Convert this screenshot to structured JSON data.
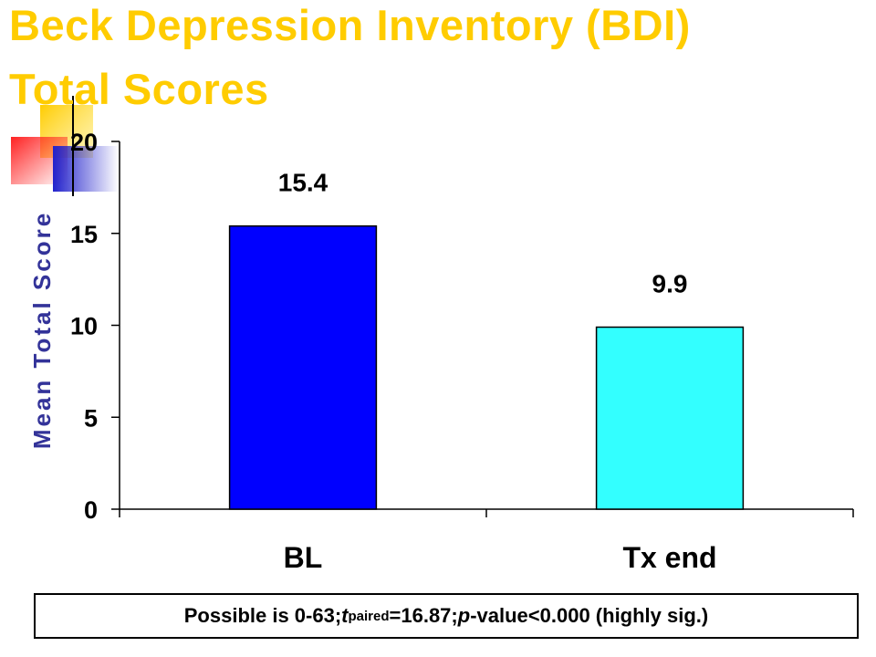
{
  "slide": {
    "title_line_1": "Beck Depression Inventory (BDI)",
    "title_line_2": "Total Scores",
    "title_color": "#FFCC00",
    "note": {
      "range_text": "Possible is 0-63; ",
      "t_symbol": "t",
      "t_subscript": "paired",
      "t_value_text": "=16.87; ",
      "p_symbol": "p",
      "p_value_text": "-value<0.000 (highly sig.)"
    }
  },
  "chart_data": {
    "type": "bar",
    "categories": [
      "BL",
      "Tx end"
    ],
    "values": [
      15.4,
      9.9
    ],
    "data_labels": [
      "15.4",
      "9.9"
    ],
    "bar_colors": [
      "#0000FF",
      "#33FFFF"
    ],
    "ylabel": "Mean Total Score",
    "ylabel_color": "#333399",
    "ylim": [
      0,
      20
    ],
    "yticks": [
      0,
      5,
      10,
      15,
      20
    ],
    "ytick_labels": [
      "0",
      "5",
      "10",
      "15",
      "20"
    ],
    "grid": false,
    "legend": "none"
  }
}
